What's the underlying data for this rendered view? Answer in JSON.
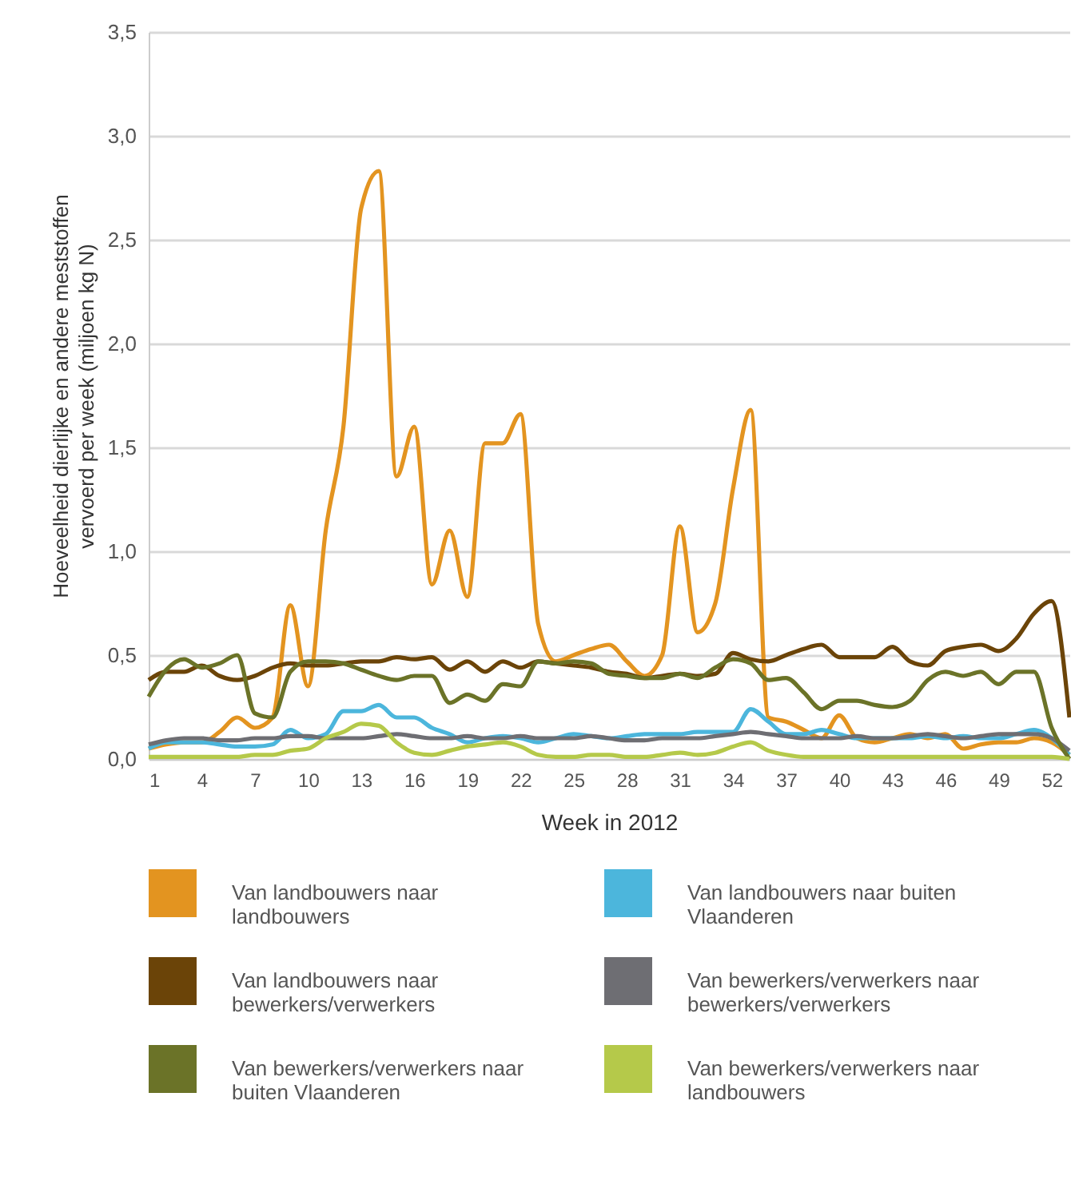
{
  "chart_data": {
    "type": "line",
    "ylabel": "Hoeveelheid dierlijke en andere meststoffen vervoerd per week (miljoen kg N)",
    "xlabel": "Week in 2012",
    "x": [
      1,
      2,
      3,
      4,
      5,
      6,
      7,
      8,
      9,
      10,
      11,
      12,
      13,
      14,
      15,
      16,
      17,
      18,
      19,
      20,
      21,
      22,
      23,
      24,
      25,
      26,
      27,
      28,
      29,
      30,
      31,
      32,
      33,
      34,
      35,
      36,
      37,
      38,
      39,
      40,
      41,
      42,
      43,
      44,
      45,
      46,
      47,
      48,
      49,
      50,
      51,
      52,
      53
    ],
    "xlim": [
      1,
      53
    ],
    "xticks": [
      1,
      4,
      7,
      10,
      13,
      16,
      19,
      22,
      25,
      28,
      31,
      34,
      37,
      40,
      43,
      46,
      49,
      52
    ],
    "ylim": [
      0,
      3.5
    ],
    "yticks": [
      {
        "value": 0,
        "label": "0,0"
      },
      {
        "value": 0.5,
        "label": "0,5"
      },
      {
        "value": 1,
        "label": "1,0"
      },
      {
        "value": 1.5,
        "label": "1,5"
      },
      {
        "value": 2,
        "label": "2,0"
      },
      {
        "value": 2.5,
        "label": "2,5"
      },
      {
        "value": 3,
        "label": "3,0"
      },
      {
        "value": 3.5,
        "label": "3,5"
      }
    ],
    "grid": "y",
    "legend": "bottom",
    "series": [
      {
        "name": "Van landbouwers naar landbouwers",
        "color": "#e39420",
        "values": [
          0.05,
          0.07,
          0.08,
          0.08,
          0.13,
          0.2,
          0.15,
          0.2,
          0.74,
          0.35,
          1.1,
          1.6,
          2.65,
          2.83,
          1.36,
          1.6,
          0.84,
          1.1,
          0.78,
          1.52,
          1.52,
          1.66,
          0.65,
          0.47,
          0.5,
          0.53,
          0.55,
          0.47,
          0.4,
          0.5,
          1.12,
          0.61,
          0.75,
          1.3,
          1.68,
          0.2,
          0.18,
          0.14,
          0.1,
          0.21,
          0.1,
          0.08,
          0.1,
          0.12,
          0.1,
          0.12,
          0.05,
          0.07,
          0.08,
          0.08,
          0.1,
          0.08,
          0.02
        ]
      },
      {
        "name": "Van landbouwers naar buiten Vlaanderen",
        "color": "#4cb6dc",
        "values": [
          0.05,
          0.08,
          0.08,
          0.08,
          0.07,
          0.06,
          0.06,
          0.07,
          0.14,
          0.1,
          0.12,
          0.23,
          0.23,
          0.26,
          0.2,
          0.2,
          0.15,
          0.12,
          0.08,
          0.1,
          0.11,
          0.1,
          0.08,
          0.1,
          0.12,
          0.11,
          0.1,
          0.11,
          0.12,
          0.12,
          0.12,
          0.13,
          0.13,
          0.13,
          0.24,
          0.18,
          0.12,
          0.12,
          0.14,
          0.12,
          0.1,
          0.1,
          0.1,
          0.1,
          0.11,
          0.1,
          0.11,
          0.1,
          0.1,
          0.12,
          0.14,
          0.1,
          0.02
        ]
      },
      {
        "name": "Van landbouwers naar bewerkers/verwerkers",
        "color": "#6b4408",
        "values": [
          0.38,
          0.42,
          0.42,
          0.45,
          0.4,
          0.38,
          0.4,
          0.44,
          0.46,
          0.45,
          0.45,
          0.46,
          0.47,
          0.47,
          0.49,
          0.48,
          0.49,
          0.43,
          0.47,
          0.42,
          0.47,
          0.44,
          0.47,
          0.46,
          0.45,
          0.44,
          0.42,
          0.41,
          0.39,
          0.4,
          0.41,
          0.4,
          0.41,
          0.51,
          0.48,
          0.47,
          0.5,
          0.53,
          0.55,
          0.49,
          0.49,
          0.49,
          0.54,
          0.47,
          0.45,
          0.52,
          0.54,
          0.55,
          0.52,
          0.58,
          0.7,
          0.76,
          0.2
        ]
      },
      {
        "name": "Van bewerkers/verwerkers naar bewerkers/verwerkers",
        "color": "#6e6e73",
        "values": [
          0.07,
          0.09,
          0.1,
          0.1,
          0.09,
          0.09,
          0.1,
          0.1,
          0.11,
          0.11,
          0.1,
          0.1,
          0.1,
          0.11,
          0.12,
          0.11,
          0.1,
          0.1,
          0.11,
          0.1,
          0.1,
          0.11,
          0.1,
          0.1,
          0.1,
          0.11,
          0.1,
          0.09,
          0.09,
          0.1,
          0.1,
          0.1,
          0.11,
          0.12,
          0.13,
          0.12,
          0.11,
          0.1,
          0.1,
          0.1,
          0.11,
          0.1,
          0.1,
          0.11,
          0.12,
          0.11,
          0.1,
          0.11,
          0.12,
          0.12,
          0.12,
          0.1,
          0.04
        ]
      },
      {
        "name": "Van bewerkers/verwerkers naar buiten Vlaanderen",
        "color": "#6b7328",
        "values": [
          0.3,
          0.43,
          0.48,
          0.44,
          0.46,
          0.5,
          0.22,
          0.2,
          0.42,
          0.47,
          0.47,
          0.46,
          0.43,
          0.4,
          0.38,
          0.4,
          0.4,
          0.27,
          0.31,
          0.28,
          0.36,
          0.35,
          0.47,
          0.46,
          0.47,
          0.46,
          0.41,
          0.4,
          0.39,
          0.39,
          0.41,
          0.39,
          0.44,
          0.48,
          0.46,
          0.38,
          0.39,
          0.32,
          0.24,
          0.28,
          0.28,
          0.26,
          0.25,
          0.28,
          0.38,
          0.42,
          0.4,
          0.42,
          0.36,
          0.42,
          0.42,
          0.15,
          0.0
        ]
      },
      {
        "name": "Van bewerkers/verwerkers naar landbouwers",
        "color": "#b5c94a",
        "values": [
          0.01,
          0.01,
          0.01,
          0.01,
          0.01,
          0.01,
          0.02,
          0.02,
          0.04,
          0.05,
          0.1,
          0.13,
          0.17,
          0.16,
          0.08,
          0.03,
          0.02,
          0.04,
          0.06,
          0.07,
          0.08,
          0.06,
          0.02,
          0.01,
          0.01,
          0.02,
          0.02,
          0.01,
          0.01,
          0.02,
          0.03,
          0.02,
          0.03,
          0.06,
          0.08,
          0.04,
          0.02,
          0.01,
          0.01,
          0.01,
          0.01,
          0.01,
          0.01,
          0.01,
          0.01,
          0.01,
          0.01,
          0.01,
          0.01,
          0.01,
          0.01,
          0.01,
          0.0
        ]
      }
    ]
  }
}
